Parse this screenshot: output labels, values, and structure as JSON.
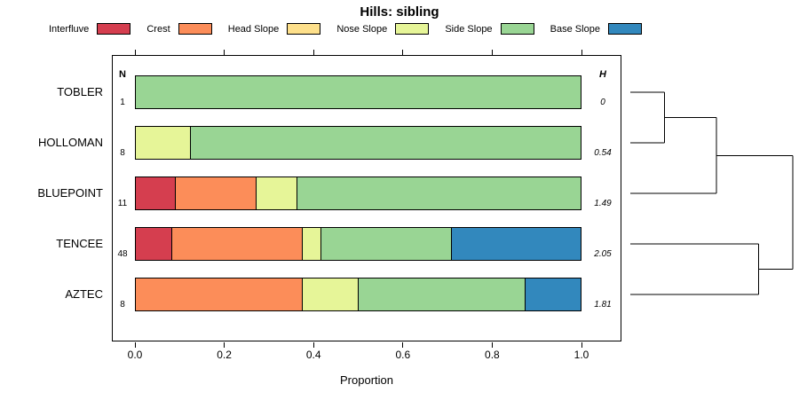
{
  "title": "Hills: sibling",
  "legend": [
    {
      "label": "Interfluve",
      "color": "#D53E4F"
    },
    {
      "label": "Crest",
      "color": "#FC8D59"
    },
    {
      "label": "Head Slope",
      "color": "#FEE08B"
    },
    {
      "label": "Nose Slope",
      "color": "#E6F598"
    },
    {
      "label": "Side Slope",
      "color": "#99D594"
    },
    {
      "label": "Base Slope",
      "color": "#3288BD"
    }
  ],
  "chart_data": {
    "type": "bar",
    "variant": "stacked-horizontal",
    "title": "Hills: sibling",
    "xlabel": "Proportion",
    "xlim": [
      0,
      1
    ],
    "xticks": [
      "0.0",
      "0.2",
      "0.4",
      "0.6",
      "0.8",
      "1.0"
    ],
    "grid": false,
    "legend_position": "top",
    "col_headers": {
      "n": "N",
      "h": "H"
    },
    "categories": [
      "TOBLER",
      "HOLLOMAN",
      "BLUEPOINT",
      "TENCEE",
      "AZTEC"
    ],
    "rows": [
      {
        "name": "TOBLER",
        "n": "1",
        "h": "0",
        "segments": [
          [
            "Side Slope",
            1.0
          ]
        ]
      },
      {
        "name": "HOLLOMAN",
        "n": "8",
        "h": "0.54",
        "segments": [
          [
            "Nose Slope",
            0.125
          ],
          [
            "Side Slope",
            0.875
          ]
        ]
      },
      {
        "name": "BLUEPOINT",
        "n": "11",
        "h": "1.49",
        "segments": [
          [
            "Interfluve",
            0.091
          ],
          [
            "Crest",
            0.182
          ],
          [
            "Nose Slope",
            0.091
          ],
          [
            "Side Slope",
            0.636
          ]
        ]
      },
      {
        "name": "TENCEE",
        "n": "48",
        "h": "2.05",
        "segments": [
          [
            "Interfluve",
            0.083
          ],
          [
            "Crest",
            0.292
          ],
          [
            "Nose Slope",
            0.042
          ],
          [
            "Side Slope",
            0.292
          ],
          [
            "Base Slope",
            0.291
          ]
        ]
      },
      {
        "name": "AZTEC",
        "n": "8",
        "h": "1.81",
        "segments": [
          [
            "Crest",
            0.375
          ],
          [
            "Nose Slope",
            0.125
          ],
          [
            "Side Slope",
            0.375
          ],
          [
            "Base Slope",
            0.125
          ]
        ]
      }
    ],
    "dendrogram": {
      "leaves": [
        "TOBLER",
        "HOLLOMAN",
        "BLUEPOINT",
        "TENCEE",
        "AZTEC"
      ],
      "merges": [
        {
          "a": "TOBLER",
          "b": "HOLLOMAN",
          "height": 0.21
        },
        {
          "a": "m0",
          "b": "BLUEPOINT",
          "height": 0.53
        },
        {
          "a": "TENCEE",
          "b": "AZTEC",
          "height": 0.79
        },
        {
          "a": "m1",
          "b": "m2",
          "height": 1.0
        }
      ]
    }
  }
}
